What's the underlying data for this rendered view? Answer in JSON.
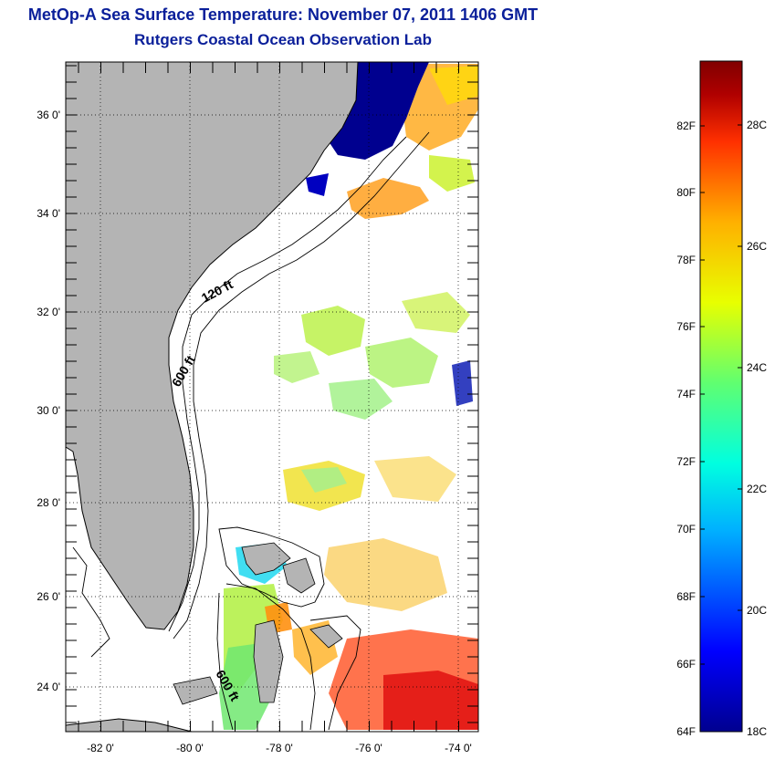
{
  "title": "MetOp-A Sea Surface Temperature:  November 07, 2011 1406 GMT",
  "subtitle": "Rutgers Coastal Ocean Observation Lab",
  "map": {
    "lat_labels": [
      "36 0'",
      "34 0'",
      "32 0'",
      "30 0'",
      "28 0'",
      "26 0'",
      "24 0'"
    ],
    "lon_labels": [
      "-82 0'",
      "-80 0'",
      "-78 0'",
      "-76 0'",
      "-74 0'"
    ],
    "contours": [
      "120 ft",
      "600 ft",
      "600 ft"
    ]
  },
  "colorbar": {
    "f_labels": [
      "82F",
      "80F",
      "78F",
      "76F",
      "74F",
      "72F",
      "70F",
      "68F",
      "66F",
      "64F"
    ],
    "c_labels": [
      "28C",
      "26C",
      "24C",
      "22C",
      "20C",
      "18C"
    ],
    "colors": [
      "#00008f",
      "#0000ff",
      "#00b0ff",
      "#00ffe0",
      "#60ff70",
      "#e8ff00",
      "#ffb000",
      "#ff3000",
      "#b00000",
      "#800000"
    ]
  },
  "colors": {
    "title": "#0a1f9a",
    "land": "#b4b4b4",
    "ocean": "#ffffff"
  }
}
